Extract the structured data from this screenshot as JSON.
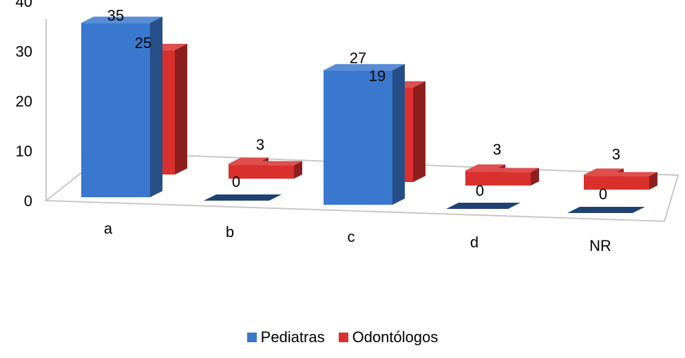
{
  "chart_data": {
    "type": "bar",
    "categories": [
      "a",
      "b",
      "c",
      "d",
      "NR"
    ],
    "series": [
      {
        "name": "Pediatras",
        "values": [
          35,
          0,
          27,
          0,
          0
        ],
        "color": "#3a78cf"
      },
      {
        "name": "Odontólogos",
        "values": [
          25,
          3,
          19,
          3,
          3
        ],
        "color": "#d9302e"
      }
    ],
    "y_ticks": [
      "0",
      "10",
      "20",
      "30",
      "40"
    ],
    "ylim": [
      0,
      40
    ],
    "data_labels": {
      "Pediatras": [
        "35",
        "0",
        "27",
        "0",
        "0"
      ],
      "Odontólogos": [
        "25",
        "3",
        "19",
        "3",
        "3"
      ]
    },
    "style": "3d-clustered-column",
    "legend_position": "bottom",
    "grid": false
  }
}
